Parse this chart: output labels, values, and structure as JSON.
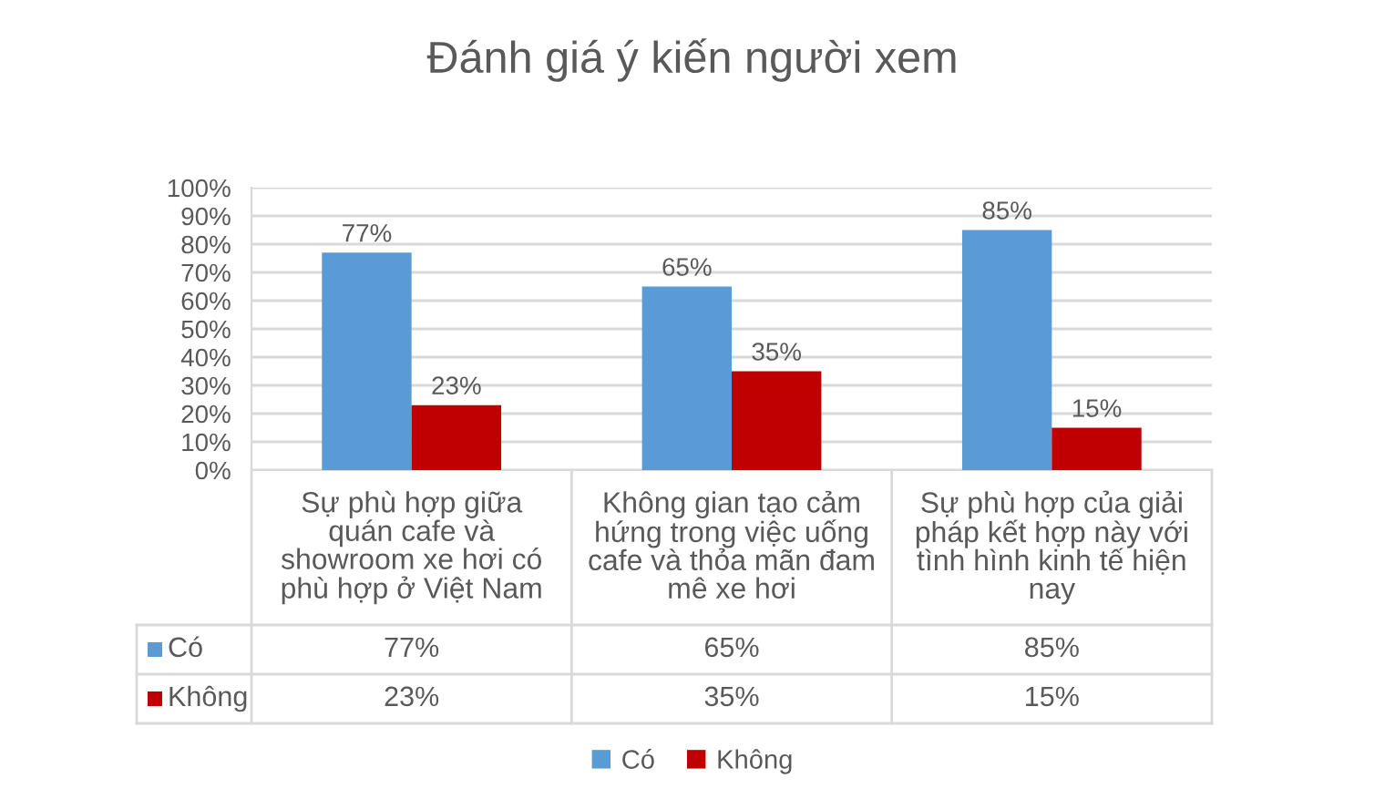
{
  "chart_data": {
    "type": "bar",
    "title": "Đánh giá ý kiến người xem",
    "categories": [
      "Sự phù hợp giữa quán cafe và showroom xe hơi có phù hợp ở Việt Nam",
      "Không gian tạo cảm hứng trong việc uống cafe và thỏa mãn đam mê xe hơi",
      "Sự phù hợp của giải pháp kết hợp này với tình hình kinh tế hiện nay"
    ],
    "series": [
      {
        "name": "Có",
        "color": "#5b9bd5",
        "values": [
          77,
          65,
          85
        ],
        "value_labels": [
          "77%",
          "65%",
          "85%"
        ]
      },
      {
        "name": "Không",
        "color": "#c00000",
        "values": [
          23,
          35,
          15
        ],
        "value_labels": [
          "23%",
          "35%",
          "15%"
        ]
      }
    ],
    "ylim": [
      0,
      100
    ],
    "yticks": [
      {
        "value": 0,
        "label": "0%"
      },
      {
        "value": 10,
        "label": "10%"
      },
      {
        "value": 20,
        "label": "20%"
      },
      {
        "value": 30,
        "label": "30%"
      },
      {
        "value": 40,
        "label": "40%"
      },
      {
        "value": 50,
        "label": "50%"
      },
      {
        "value": 60,
        "label": "60%"
      },
      {
        "value": 70,
        "label": "70%"
      },
      {
        "value": 80,
        "label": "80%"
      },
      {
        "value": 90,
        "label": "90%"
      },
      {
        "value": 100,
        "label": "100%"
      }
    ],
    "grid": "y",
    "legend": "bottom"
  }
}
